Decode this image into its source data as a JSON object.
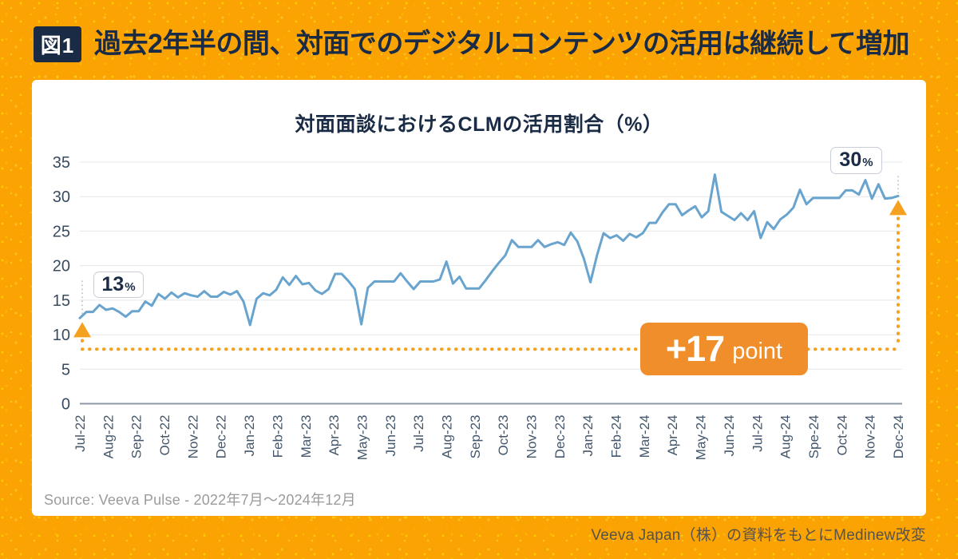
{
  "page": {
    "figure_label": "図1",
    "title": "過去2年半の間、対面でのデジタルコンテンツの活用は継続して増加",
    "attribution": "Veeva Japan（株）の資料をもとにMedinew改変"
  },
  "card": {
    "source": "Source: Veeva Pulse - 2022年7月～2024年12月"
  },
  "annotations": {
    "start": {
      "value": "13",
      "unit": "%"
    },
    "end": {
      "value": "30",
      "unit": "%"
    },
    "delta": {
      "number": "+17",
      "unit": "point"
    }
  },
  "theme": {
    "bg-orange": "#FBA303",
    "navy": "#1A2B45",
    "card-bg": "#FFFFFF",
    "line-blue": "#68A4CE",
    "accent-orange": "#F5A01E",
    "badge-orange": "#EF8E2B",
    "grid-gray": "#E3E7EB",
    "axis-gray": "#8E99A6",
    "tick-label": "#44566B",
    "text-gray": "#9B9B9B",
    "attr-gray": "#57524A",
    "callout-border": "#C9CED6"
  },
  "chart_data": {
    "type": "line",
    "title": "対面面談におけるCLMの活用割合（%）",
    "xlabel": "",
    "ylabel": "",
    "ylim": [
      0,
      35
    ],
    "y_ticks": [
      0,
      5,
      10,
      15,
      20,
      25,
      30,
      35
    ],
    "grid": "horizontal",
    "legend": "none",
    "x_tick_labels": [
      "Jul-22",
      "Aug-22",
      "Sep-22",
      "Oct-22",
      "Nov-22",
      "Dec-22",
      "Jan-23",
      "Feb-23",
      "Mar-23",
      "Apr-23",
      "May-23",
      "Jun-23",
      "Jul-23",
      "Aug-23",
      "Sep-23",
      "Oct-23",
      "Nov-23",
      "Dec-23",
      "Jan-24",
      "Feb-24",
      "Mar-24",
      "Apr-24",
      "May-24",
      "Jun-24",
      "Jul-24",
      "Aug-24",
      "Spe-24",
      "Oct-24",
      "Nov-24",
      "Dec-24"
    ],
    "annotation_baseline_value": 7.9,
    "start_label_value": 13,
    "end_label_value": 30,
    "series": [
      {
        "name": "対面面談におけるCLMの活用割合",
        "color": "#68A4CE",
        "frequency": "weekly",
        "values": [
          12.4,
          13.3,
          13.3,
          14.3,
          13.6,
          13.8,
          13.3,
          12.6,
          13.4,
          13.4,
          14.8,
          14.2,
          15.9,
          15.2,
          16.1,
          15.4,
          16.0,
          15.7,
          15.5,
          16.3,
          15.5,
          15.5,
          16.2,
          15.8,
          16.3,
          14.8,
          11.4,
          15.2,
          16.0,
          15.7,
          16.5,
          18.3,
          17.2,
          18.5,
          17.3,
          17.5,
          16.4,
          15.9,
          16.6,
          18.8,
          18.8,
          17.8,
          16.6,
          11.5,
          16.8,
          17.7,
          17.7,
          17.7,
          17.7,
          18.9,
          17.7,
          16.6,
          17.7,
          17.7,
          17.7,
          18.0,
          20.6,
          17.4,
          18.4,
          16.7,
          16.7,
          16.7,
          17.9,
          19.2,
          20.4,
          21.5,
          23.7,
          22.7,
          22.7,
          22.7,
          23.7,
          22.7,
          23.1,
          23.4,
          23.0,
          24.8,
          23.5,
          21.0,
          17.6,
          21.5,
          24.7,
          24.0,
          24.4,
          23.6,
          24.6,
          24.1,
          24.7,
          26.2,
          26.2,
          27.7,
          28.9,
          28.9,
          27.3,
          28.0,
          28.6,
          27.0,
          27.9,
          33.2,
          27.8,
          27.2,
          26.6,
          27.6,
          26.6,
          27.9,
          24.0,
          26.3,
          25.3,
          26.7,
          27.4,
          28.4,
          31.0,
          28.9,
          29.8,
          29.8,
          29.8,
          29.8,
          29.8,
          30.9,
          30.9,
          30.3,
          32.4,
          29.7,
          31.8,
          29.7,
          29.8,
          30.1
        ]
      }
    ]
  }
}
